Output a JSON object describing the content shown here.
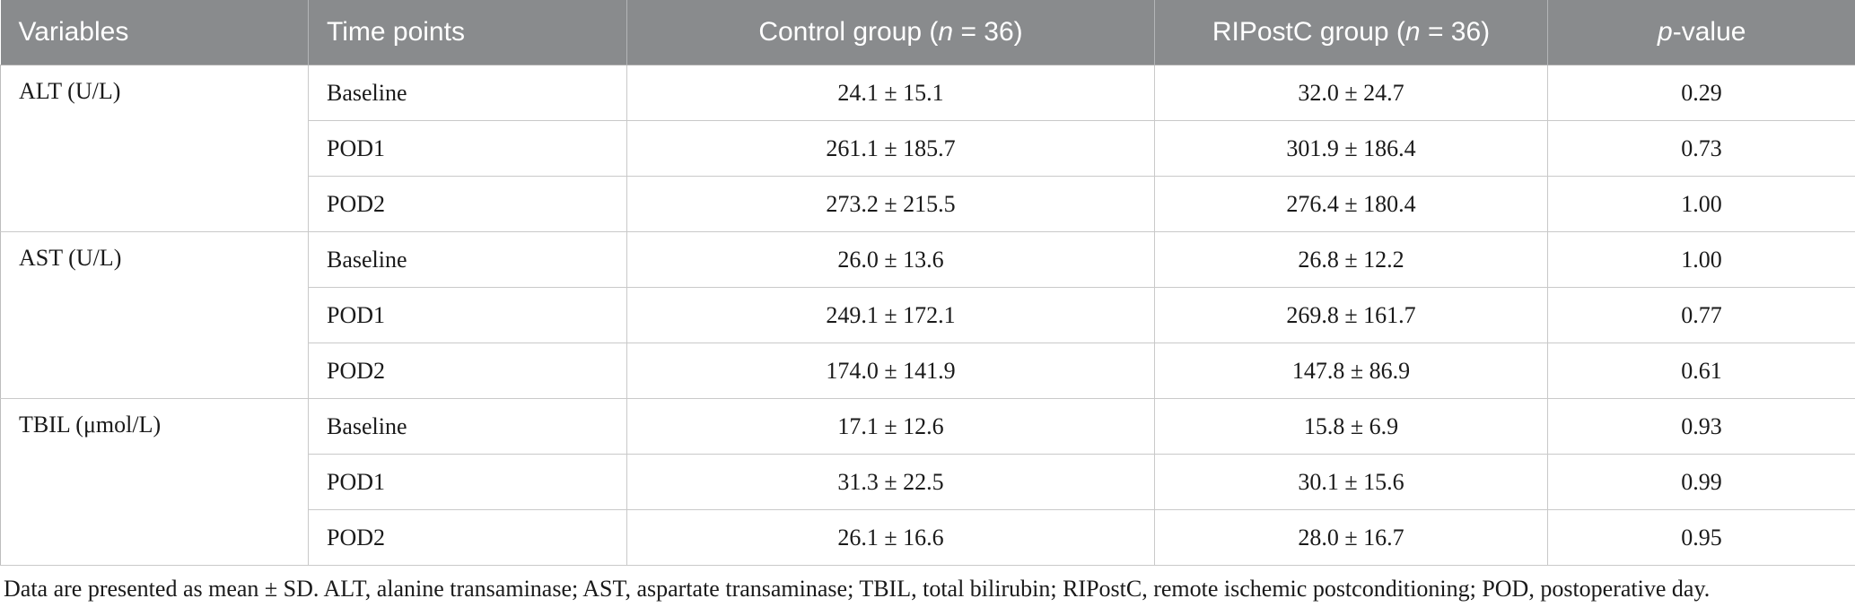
{
  "colors": {
    "header_background": "#898b8d",
    "header_text": "#ffffff",
    "header_separator": "#b3b5b7",
    "row_border": "#c9c9c9",
    "section_border": "#aeaeae",
    "body_text": "#1a1a1a",
    "page_background": "#ffffff"
  },
  "table": {
    "headers": [
      {
        "pre": "Variables",
        "italic": "",
        "post": ""
      },
      {
        "pre": "Time points",
        "italic": "",
        "post": ""
      },
      {
        "pre": "Control group (",
        "italic": "n",
        "post": " = 36)"
      },
      {
        "pre": "RIPostC group (",
        "italic": "n",
        "post": " = 36)"
      },
      {
        "pre": "",
        "italic": "p",
        "post": "-value"
      }
    ],
    "sections": [
      {
        "variable": "ALT (U/L)",
        "rows": [
          {
            "time": "Baseline",
            "control": "24.1 ± 15.1",
            "ripostc": "32.0 ± 24.7",
            "p": "0.29"
          },
          {
            "time": "POD1",
            "control": "261.1 ± 185.7",
            "ripostc": "301.9 ± 186.4",
            "p": "0.73"
          },
          {
            "time": "POD2",
            "control": "273.2 ± 215.5",
            "ripostc": "276.4 ± 180.4",
            "p": "1.00"
          }
        ]
      },
      {
        "variable": "AST (U/L)",
        "rows": [
          {
            "time": "Baseline",
            "control": "26.0 ± 13.6",
            "ripostc": "26.8 ± 12.2",
            "p": "1.00"
          },
          {
            "time": "POD1",
            "control": "249.1 ± 172.1",
            "ripostc": "269.8 ± 161.7",
            "p": "0.77"
          },
          {
            "time": "POD2",
            "control": "174.0 ± 141.9",
            "ripostc": "147.8 ± 86.9",
            "p": "0.61"
          }
        ]
      },
      {
        "variable": "TBIL (μmol/L)",
        "rows": [
          {
            "time": "Baseline",
            "control": "17.1 ± 12.6",
            "ripostc": "15.8 ± 6.9",
            "p": "0.93"
          },
          {
            "time": "POD1",
            "control": "31.3 ± 22.5",
            "ripostc": "30.1 ± 15.6",
            "p": "0.99"
          },
          {
            "time": "POD2",
            "control": "26.1 ± 16.6",
            "ripostc": "28.0 ± 16.7",
            "p": "0.95"
          }
        ]
      }
    ]
  },
  "footnote": "Data are presented as mean ± SD. ALT, alanine transaminase; AST, aspartate transaminase; TBIL, total bilirubin; RIPostC, remote ischemic postconditioning; POD, postoperative day."
}
